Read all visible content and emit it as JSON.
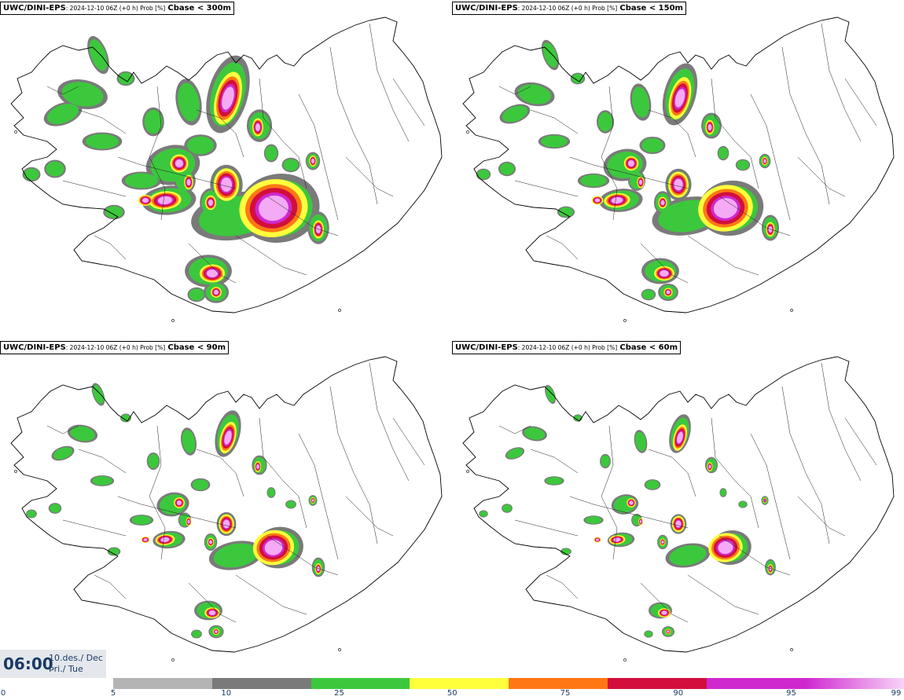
{
  "panels": [
    {
      "model": "UWC/DINI-EPS",
      "meta": ": 2024-12-10 06Z (+0 h) Prob [%]",
      "param": "Cbase < 300m",
      "intensity": 1.0
    },
    {
      "model": "UWC/DINI-EPS",
      "meta": ": 2024-12-10 06Z (+0 h) Prob [%]",
      "param": "Cbase < 150m",
      "intensity": 0.8
    },
    {
      "model": "UWC/DINI-EPS",
      "meta": ": 2024-12-10 06Z (+0 h) Prob [%]",
      "param": "Cbase < 90m",
      "intensity": 0.6
    },
    {
      "model": "UWC/DINI-EPS",
      "meta": ": 2024-12-10 06Z (+0 h) Prob [%]",
      "param": "Cbase < 60m",
      "intensity": 0.5
    }
  ],
  "valid_time": {
    "time": "06:00",
    "date_line": "10.des./ Dec",
    "day_line": "Þri./ Tue"
  },
  "legend": {
    "ticks": [
      "0",
      "5",
      "10",
      "25",
      "50",
      "75",
      "90",
      "95",
      "99"
    ],
    "colors": [
      "#b4b4b4",
      "#7a7a7a",
      "#3cc83c",
      "#ffff3c",
      "#ff7814",
      "#d20f3c",
      "#cf28cf",
      "#f5aaf5"
    ]
  }
}
